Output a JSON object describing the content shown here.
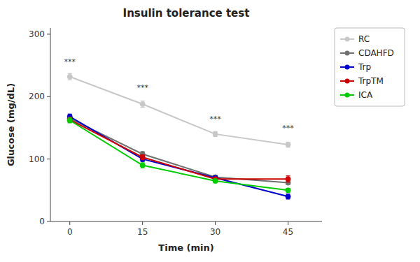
{
  "chart_data": {
    "type": "line",
    "title": "Insulin tolerance test",
    "xlabel": "Time (min)",
    "ylabel": "Glucose (mg/dL)",
    "x": [
      0,
      15,
      30,
      45
    ],
    "series": [
      {
        "name": "RC",
        "color": "#c8c8c8",
        "values": [
          232,
          188,
          140,
          123
        ],
        "errors": [
          5,
          5,
          4,
          4
        ]
      },
      {
        "name": "CDAHFD",
        "color": "#707070",
        "values": [
          165,
          108,
          71,
          62
        ],
        "errors": [
          4,
          4,
          3,
          3
        ]
      },
      {
        "name": "Trp",
        "color": "#0000cc",
        "values": [
          168,
          100,
          70,
          40
        ],
        "errors": [
          4,
          4,
          3,
          4
        ]
      },
      {
        "name": "TrpTM",
        "color": "#cc0000",
        "values": [
          163,
          103,
          68,
          68
        ],
        "errors": [
          4,
          4,
          3,
          5
        ]
      },
      {
        "name": "ICA",
        "color": "#00cc00",
        "values": [
          162,
          90,
          65,
          50
        ],
        "errors": [
          4,
          4,
          3,
          3
        ]
      }
    ],
    "annotations": [
      {
        "text": "***",
        "x": 0,
        "y": 250
      },
      {
        "text": "***",
        "x": 15,
        "y": 208
      },
      {
        "text": "***",
        "x": 30,
        "y": 158
      },
      {
        "text": "***",
        "x": 45,
        "y": 143
      }
    ],
    "xlim": [
      -4,
      52
    ],
    "xticks": [
      0,
      15,
      30,
      45
    ],
    "ylim": [
      0,
      310
    ],
    "yticks": [
      0,
      100,
      200,
      300
    ],
    "grid": false,
    "legend": "right",
    "marker": "circle"
  }
}
